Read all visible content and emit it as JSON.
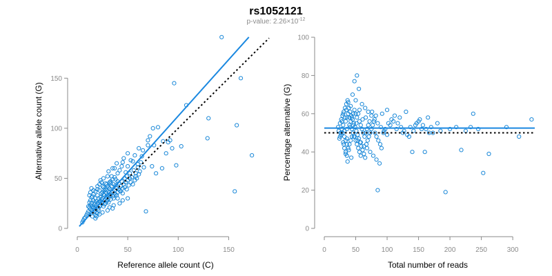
{
  "title": "rs1052121",
  "subtitle": {
    "prefix": "p-value: 2.26×10",
    "exponent": "-12"
  },
  "colors": {
    "points": "#1a88d8",
    "fit_line": "#1a88e0",
    "reference_line": "#000000",
    "axis": "#8a8a8a"
  },
  "chart_data": [
    {
      "id": "left",
      "type": "scatter",
      "xlabel": "Reference allele count (C)",
      "ylabel": "Alternative allele count (G)",
      "xlim": [
        0,
        175
      ],
      "ylim": [
        0,
        195
      ],
      "xticks": [
        0,
        50,
        100,
        150
      ],
      "yticks": [
        0,
        50,
        100,
        150
      ],
      "fit_line": {
        "x": [
          2,
          170
        ],
        "y": [
          2,
          191
        ]
      },
      "reference_line": {
        "x": [
          12,
          190
        ],
        "y": [
          12,
          190
        ]
      },
      "points": [
        [
          143,
          191
        ],
        [
          96,
          145
        ],
        [
          162,
          150
        ],
        [
          130,
          110
        ],
        [
          108,
          123
        ],
        [
          173,
          73
        ],
        [
          158,
          103
        ],
        [
          156,
          37
        ],
        [
          129,
          90
        ],
        [
          68,
          17
        ],
        [
          80,
          101
        ],
        [
          75,
          100
        ],
        [
          98,
          63
        ],
        [
          103,
          82
        ],
        [
          90,
          86
        ],
        [
          85,
          87
        ],
        [
          78,
          55
        ],
        [
          70,
          83
        ],
        [
          65,
          78
        ],
        [
          64,
          72
        ],
        [
          55,
          67
        ],
        [
          60,
          61
        ],
        [
          58,
          55
        ],
        [
          50,
          62
        ],
        [
          45,
          66
        ],
        [
          48,
          56
        ],
        [
          52,
          50
        ],
        [
          40,
          55
        ],
        [
          38,
          49
        ],
        [
          35,
          60
        ],
        [
          33,
          45
        ],
        [
          30,
          52
        ],
        [
          32,
          40
        ],
        [
          28,
          45
        ],
        [
          27,
          38
        ],
        [
          25,
          42
        ],
        [
          24,
          35
        ],
        [
          22,
          38
        ],
        [
          21,
          30
        ],
        [
          20,
          33
        ],
        [
          19,
          27
        ],
        [
          18,
          30
        ],
        [
          17,
          24
        ],
        [
          16,
          28
        ],
        [
          15,
          22
        ],
        [
          14,
          25
        ],
        [
          13,
          19
        ],
        [
          12,
          21
        ],
        [
          11,
          17
        ],
        [
          10,
          15
        ],
        [
          9,
          13
        ],
        [
          8,
          11
        ],
        [
          7,
          10
        ],
        [
          6,
          8
        ],
        [
          5,
          6
        ],
        [
          14,
          40
        ],
        [
          13,
          36
        ],
        [
          15,
          32
        ],
        [
          16,
          20
        ],
        [
          17,
          17
        ],
        [
          18,
          13
        ],
        [
          19,
          12
        ],
        [
          20,
          15
        ],
        [
          21,
          18
        ],
        [
          22,
          22
        ],
        [
          23,
          27
        ],
        [
          24,
          25
        ],
        [
          25,
          30
        ],
        [
          26,
          22
        ],
        [
          27,
          28
        ],
        [
          28,
          25
        ],
        [
          29,
          31
        ],
        [
          30,
          28
        ],
        [
          31,
          26
        ],
        [
          32,
          33
        ],
        [
          33,
          29
        ],
        [
          34,
          36
        ],
        [
          35,
          32
        ],
        [
          36,
          30
        ],
        [
          37,
          38
        ],
        [
          38,
          34
        ],
        [
          39,
          40
        ],
        [
          40,
          36
        ],
        [
          41,
          45
        ],
        [
          42,
          38
        ],
        [
          43,
          42
        ],
        [
          44,
          47
        ],
        [
          45,
          40
        ],
        [
          46,
          44
        ],
        [
          47,
          50
        ],
        [
          48,
          46
        ],
        [
          49,
          52
        ],
        [
          50,
          48
        ],
        [
          52,
          55
        ],
        [
          54,
          51
        ],
        [
          56,
          58
        ],
        [
          58,
          52
        ],
        [
          60,
          64
        ],
        [
          62,
          57
        ],
        [
          40,
          30
        ],
        [
          35,
          20
        ],
        [
          30,
          18
        ],
        [
          25,
          16
        ],
        [
          22,
          14
        ],
        [
          18,
          10
        ],
        [
          13,
          28
        ],
        [
          12,
          33
        ],
        [
          14,
          15
        ],
        [
          15,
          12
        ],
        [
          16,
          38
        ],
        [
          20,
          42
        ],
        [
          23,
          48
        ],
        [
          26,
          50
        ],
        [
          29,
          44
        ],
        [
          31,
          57
        ],
        [
          34,
          52
        ],
        [
          37,
          60
        ],
        [
          39,
          65
        ],
        [
          42,
          58
        ],
        [
          44,
          62
        ],
        [
          46,
          70
        ],
        [
          50,
          75
        ],
        [
          53,
          68
        ],
        [
          57,
          73
        ],
        [
          61,
          80
        ],
        [
          63,
          66
        ],
        [
          66,
          61
        ],
        [
          70,
          88
        ],
        [
          72,
          92
        ],
        [
          74,
          62
        ],
        [
          76,
          83
        ],
        [
          84,
          60
        ],
        [
          88,
          75
        ],
        [
          92,
          88
        ],
        [
          94,
          80
        ],
        [
          20,
          25
        ],
        [
          22,
          27
        ],
        [
          24,
          29
        ],
        [
          26,
          34
        ],
        [
          28,
          36
        ],
        [
          30,
          33
        ],
        [
          32,
          36
        ],
        [
          34,
          42
        ],
        [
          36,
          44
        ],
        [
          38,
          43
        ],
        [
          40,
          47
        ],
        [
          18,
          21
        ],
        [
          19,
          23
        ],
        [
          21,
          26
        ],
        [
          23,
          31
        ],
        [
          25,
          36
        ],
        [
          27,
          33
        ],
        [
          29,
          38
        ],
        [
          31,
          41
        ],
        [
          33,
          47
        ],
        [
          35,
          49
        ],
        [
          37,
          51
        ],
        [
          15,
          18
        ],
        [
          16,
          21
        ],
        [
          17,
          26
        ],
        [
          13,
          23
        ],
        [
          12,
          26
        ],
        [
          11,
          22
        ],
        [
          14,
          31
        ],
        [
          16,
          34
        ],
        [
          18,
          37
        ],
        [
          20,
          39
        ],
        [
          22,
          44
        ],
        [
          24,
          46
        ],
        [
          26,
          41
        ],
        [
          28,
          39
        ],
        [
          30,
          42
        ],
        [
          32,
          46
        ],
        [
          19,
          16
        ],
        [
          21,
          20
        ],
        [
          23,
          23
        ],
        [
          25,
          26
        ],
        [
          27,
          24
        ],
        [
          29,
          27
        ],
        [
          31,
          30
        ],
        [
          33,
          33
        ],
        [
          35,
          37
        ],
        [
          37,
          35
        ],
        [
          39,
          33
        ],
        [
          41,
          39
        ],
        [
          43,
          37
        ],
        [
          45,
          35
        ],
        [
          47,
          41
        ],
        [
          49,
          39
        ],
        [
          51,
          43
        ],
        [
          53,
          46
        ],
        [
          55,
          44
        ],
        [
          57,
          48
        ],
        [
          59,
          50
        ],
        [
          61,
          54
        ],
        [
          50,
          30
        ],
        [
          45,
          28
        ],
        [
          42,
          25
        ],
        [
          36,
          23
        ],
        [
          32,
          21
        ]
      ]
    },
    {
      "id": "right",
      "type": "scatter",
      "xlabel": "Total number of reads",
      "ylabel": "Percentage alternative (G)",
      "xlim": [
        0,
        335
      ],
      "ylim": [
        0,
        100
      ],
      "xticks": [
        0,
        50,
        100,
        150,
        200,
        250,
        300
      ],
      "yticks": [
        0,
        20,
        40,
        60,
        80,
        100
      ],
      "fit_line": {
        "x": [
          0,
          335
        ],
        "y": [
          52.5,
          52.5
        ]
      },
      "reference_line": {
        "x": [
          0,
          335
        ],
        "y": [
          50,
          50
        ]
      },
      "points": [
        [
          52,
          80
        ],
        [
          48,
          77
        ],
        [
          55,
          73
        ],
        [
          45,
          70
        ],
        [
          50,
          67
        ],
        [
          38,
          66
        ],
        [
          60,
          65
        ],
        [
          42,
          64
        ],
        [
          65,
          63
        ],
        [
          35,
          62
        ],
        [
          70,
          61
        ],
        [
          30,
          60
        ],
        [
          75,
          59
        ],
        [
          33,
          58
        ],
        [
          80,
          57
        ],
        [
          28,
          56
        ],
        [
          85,
          55
        ],
        [
          40,
          54
        ],
        [
          90,
          53
        ],
        [
          44,
          52
        ],
        [
          95,
          51
        ],
        [
          26,
          50
        ],
        [
          100,
          49
        ],
        [
          47,
          48
        ],
        [
          36,
          47
        ],
        [
          53,
          46
        ],
        [
          58,
          45
        ],
        [
          31,
          44
        ],
        [
          63,
          43
        ],
        [
          68,
          42
        ],
        [
          39,
          41
        ],
        [
          73,
          40
        ],
        [
          34,
          39
        ],
        [
          78,
          38
        ],
        [
          43,
          37
        ],
        [
          83,
          36
        ],
        [
          37,
          35
        ],
        [
          88,
          34
        ],
        [
          85,
          20
        ],
        [
          193,
          19
        ],
        [
          253,
          29
        ],
        [
          237,
          60
        ],
        [
          233,
          53
        ],
        [
          290,
          53
        ],
        [
          218,
          41
        ],
        [
          262,
          39
        ],
        [
          330,
          57
        ],
        [
          310,
          48
        ],
        [
          140,
          40
        ],
        [
          160,
          40
        ],
        [
          173,
          50
        ],
        [
          180,
          55
        ],
        [
          165,
          58
        ],
        [
          150,
          56
        ],
        [
          130,
          61
        ],
        [
          120,
          58
        ],
        [
          110,
          56
        ],
        [
          105,
          54
        ],
        [
          115,
          52
        ],
        [
          125,
          50
        ],
        [
          135,
          48
        ],
        [
          145,
          54
        ],
        [
          155,
          52
        ],
        [
          170,
          53
        ],
        [
          185,
          51
        ],
        [
          200,
          52
        ],
        [
          210,
          53
        ],
        [
          225,
          51
        ],
        [
          245,
          52
        ],
        [
          100,
          62
        ],
        [
          92,
          60
        ],
        [
          82,
          59
        ],
        [
          76,
          61
        ],
        [
          66,
          58
        ],
        [
          61,
          57
        ],
        [
          56,
          56
        ],
        [
          51,
          55
        ],
        [
          46,
          54
        ],
        [
          41,
          53
        ],
        [
          36,
          52
        ],
        [
          32,
          51
        ],
        [
          29,
          50
        ],
        [
          27,
          49
        ],
        [
          25,
          48
        ],
        [
          24,
          47
        ],
        [
          23,
          51
        ],
        [
          22,
          53
        ],
        [
          25,
          55
        ],
        [
          27,
          57
        ],
        [
          29,
          59
        ],
        [
          31,
          61
        ],
        [
          33,
          63
        ],
        [
          35,
          65
        ],
        [
          37,
          67
        ],
        [
          39,
          63
        ],
        [
          41,
          61
        ],
        [
          43,
          59
        ],
        [
          45,
          57
        ],
        [
          47,
          55
        ],
        [
          49,
          53
        ],
        [
          51,
          51
        ],
        [
          53,
          49
        ],
        [
          55,
          47
        ],
        [
          57,
          45
        ],
        [
          59,
          43
        ],
        [
          61,
          41
        ],
        [
          63,
          39
        ],
        [
          65,
          37
        ],
        [
          67,
          44
        ],
        [
          69,
          46
        ],
        [
          71,
          48
        ],
        [
          73,
          50
        ],
        [
          75,
          52
        ],
        [
          77,
          54
        ],
        [
          79,
          56
        ],
        [
          81,
          50
        ],
        [
          83,
          48
        ],
        [
          86,
          46
        ],
        [
          89,
          44
        ],
        [
          91,
          42
        ],
        [
          94,
          50
        ],
        [
          97,
          52
        ],
        [
          102,
          55
        ],
        [
          107,
          57
        ],
        [
          112,
          59
        ],
        [
          117,
          55
        ],
        [
          122,
          53
        ],
        [
          127,
          51
        ],
        [
          132,
          49
        ],
        [
          137,
          53
        ],
        [
          142,
          51
        ],
        [
          147,
          55
        ],
        [
          152,
          57
        ],
        [
          157,
          54
        ],
        [
          162,
          52
        ],
        [
          167,
          50
        ],
        [
          34,
          56
        ],
        [
          36,
          58
        ],
        [
          38,
          60
        ],
        [
          40,
          58
        ],
        [
          42,
          56
        ],
        [
          44,
          58
        ],
        [
          46,
          60
        ],
        [
          48,
          62
        ],
        [
          50,
          60
        ],
        [
          52,
          58
        ],
        [
          54,
          60
        ],
        [
          56,
          62
        ],
        [
          58,
          54
        ],
        [
          60,
          52
        ],
        [
          62,
          50
        ],
        [
          64,
          48
        ],
        [
          66,
          50
        ],
        [
          68,
          52
        ],
        [
          70,
          54
        ],
        [
          72,
          56
        ],
        [
          28,
          52
        ],
        [
          30,
          54
        ],
        [
          32,
          48
        ],
        [
          34,
          46
        ],
        [
          36,
          44
        ],
        [
          38,
          42
        ],
        [
          40,
          44
        ],
        [
          42,
          46
        ],
        [
          44,
          48
        ],
        [
          46,
          50
        ],
        [
          48,
          48
        ],
        [
          50,
          46
        ],
        [
          52,
          44
        ],
        [
          54,
          42
        ],
        [
          56,
          40
        ],
        [
          58,
          38
        ],
        [
          30,
          45
        ],
        [
          32,
          42
        ],
        [
          34,
          40
        ],
        [
          36,
          38
        ]
      ]
    }
  ]
}
